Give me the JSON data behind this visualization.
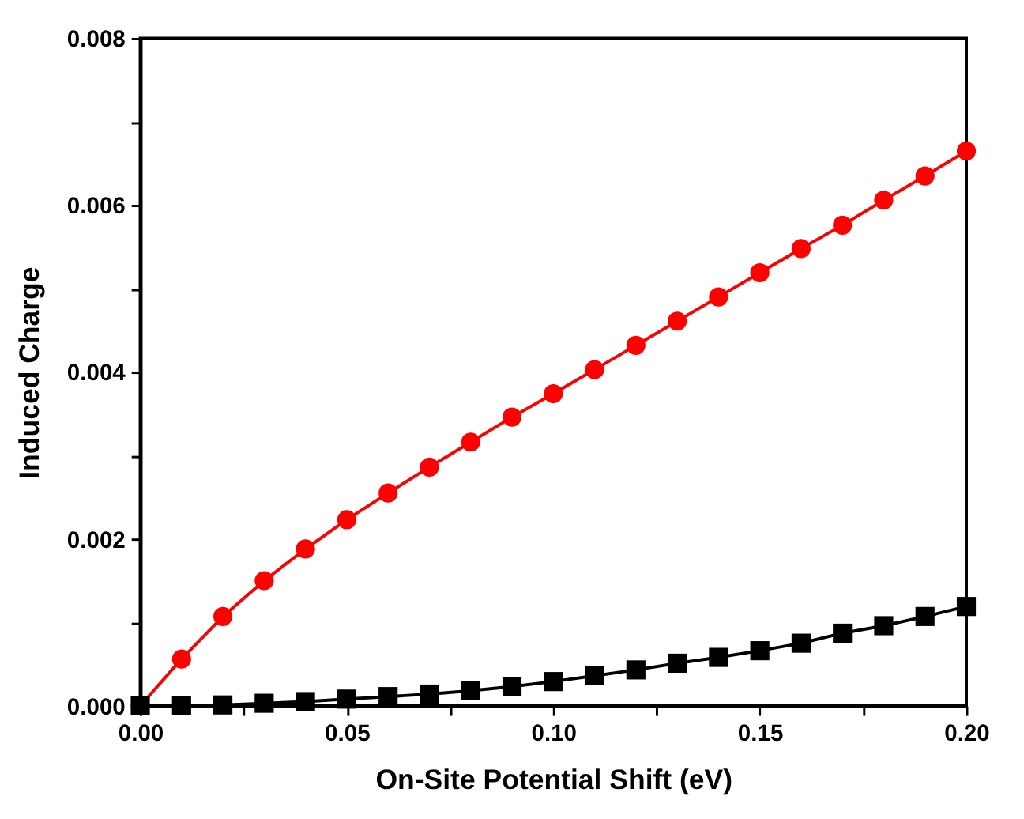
{
  "chart_data": {
    "type": "line",
    "xlabel": "On-Site Potential Shift (eV)",
    "ylabel": "Induced Charge",
    "x": [
      0,
      0.01,
      0.02,
      0.03,
      0.04,
      0.05,
      0.06,
      0.07,
      0.08,
      0.09,
      0.1,
      0.11,
      0.12,
      0.13,
      0.14,
      0.15,
      0.16,
      0.17,
      0.18,
      0.19,
      0.2
    ],
    "series": [
      {
        "color": "#ff0000",
        "marker": "circle",
        "values": [
          0,
          0.00056,
          0.00107,
          0.0015,
          0.00188,
          0.00223,
          0.00255,
          0.00286,
          0.00316,
          0.00346,
          0.00374,
          0.00403,
          0.00432,
          0.00461,
          0.0049,
          0.00519,
          0.00548,
          0.00576,
          0.00606,
          0.00635,
          0.00665
        ]
      },
      {
        "color": "#000000",
        "marker": "square",
        "values": [
          0,
          0,
          1e-05,
          3e-05,
          5e-05,
          8e-05,
          0.00011,
          0.00014,
          0.00018,
          0.00023,
          0.00029,
          0.00036,
          0.00043,
          0.00051,
          0.00058,
          0.00066,
          0.00075,
          0.00087,
          0.00096,
          0.00107,
          0.00119
        ]
      }
    ],
    "xlim": [
      0,
      0.2
    ],
    "ylim": [
      0,
      0.008
    ],
    "xticks": [
      {
        "value": 0,
        "label": "0.00"
      },
      {
        "value": 0.025,
        "label": null
      },
      {
        "value": 0.05,
        "label": "0.05"
      },
      {
        "value": 0.075,
        "label": null
      },
      {
        "value": 0.1,
        "label": "0.10"
      },
      {
        "value": 0.125,
        "label": null
      },
      {
        "value": 0.15,
        "label": "0.15"
      },
      {
        "value": 0.175,
        "label": null
      },
      {
        "value": 0.2,
        "label": "0.20"
      }
    ],
    "yticks": [
      {
        "value": 0,
        "label": "0.000"
      },
      {
        "value": 0.001,
        "label": null
      },
      {
        "value": 0.002,
        "label": "0.002"
      },
      {
        "value": 0.003,
        "label": null
      },
      {
        "value": 0.004,
        "label": "0.004"
      },
      {
        "value": 0.005,
        "label": null
      },
      {
        "value": 0.006,
        "label": "0.006"
      },
      {
        "value": 0.007,
        "label": null
      },
      {
        "value": 0.008,
        "label": "0.008"
      }
    ],
    "grid": false,
    "line_style": "solid"
  }
}
